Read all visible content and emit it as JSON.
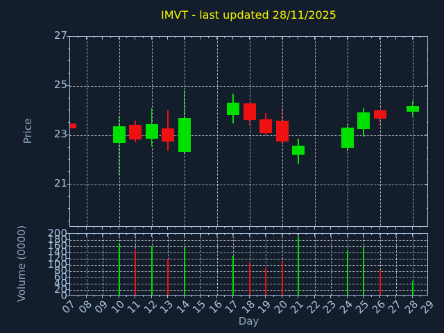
{
  "title": "IMVT - last updated 28/11/2025",
  "axes": {
    "price_label": "Price",
    "volume_label": "Volume (0000)",
    "day_label": "Day",
    "price_ticks": [
      27,
      25,
      23,
      21
    ],
    "volume_ticks": [
      200,
      180,
      160,
      140,
      120,
      100,
      80,
      60,
      40,
      20,
      0
    ],
    "day_ticks": [
      "07",
      "08",
      "09",
      "10",
      "11",
      "12",
      "13",
      "14",
      "15",
      "16",
      "17",
      "18",
      "19",
      "20",
      "21",
      "22",
      "23",
      "24",
      "25",
      "26",
      "27",
      "28",
      "29"
    ]
  },
  "colors": {
    "background": "#131d2b",
    "axis": "#a9c2de",
    "tick_label": "#a9c2de",
    "axis_title": "#8ea7c4",
    "title": "#f5f500",
    "grid": "#c9ced6",
    "up": "#00e100",
    "down": "#ee1111"
  },
  "chart_data": [
    {
      "type": "candlestick",
      "title": "IMVT - last updated 28/11/2025",
      "xlabel": "Day",
      "ylabel": "Price",
      "xlim_days": [
        7,
        29
      ],
      "ylim": [
        19.25,
        27.0
      ],
      "yticks": [
        21,
        23,
        25,
        27
      ],
      "grid": "dotted, horizontal at yticks, vertical every 2 days",
      "legend": "none",
      "series": [
        {
          "day": 7,
          "open": 23.47,
          "high": 23.49,
          "low": 23.27,
          "close": 23.29,
          "direction": "down"
        },
        {
          "day": 10,
          "open": 22.69,
          "high": 23.79,
          "low": 21.38,
          "close": 23.36,
          "direction": "up"
        },
        {
          "day": 11,
          "open": 23.41,
          "high": 23.58,
          "low": 22.72,
          "close": 22.82,
          "direction": "down"
        },
        {
          "day": 12,
          "open": 22.86,
          "high": 24.09,
          "low": 22.55,
          "close": 23.46,
          "direction": "up"
        },
        {
          "day": 13,
          "open": 23.27,
          "high": 24.0,
          "low": 22.39,
          "close": 22.74,
          "direction": "down"
        },
        {
          "day": 14,
          "open": 22.33,
          "high": 24.84,
          "low": 22.24,
          "close": 23.7,
          "direction": "up"
        },
        {
          "day": 17,
          "open": 23.81,
          "high": 24.7,
          "low": 23.47,
          "close": 24.33,
          "direction": "up"
        },
        {
          "day": 18,
          "open": 24.3,
          "high": 24.33,
          "low": 23.39,
          "close": 23.61,
          "direction": "down"
        },
        {
          "day": 19,
          "open": 23.65,
          "high": 23.91,
          "low": 22.99,
          "close": 23.08,
          "direction": "down"
        },
        {
          "day": 20,
          "open": 23.6,
          "high": 24.09,
          "low": 22.64,
          "close": 22.74,
          "direction": "down"
        },
        {
          "day": 21,
          "open": 22.22,
          "high": 22.86,
          "low": 21.85,
          "close": 22.58,
          "direction": "up"
        },
        {
          "day": 24,
          "open": 22.48,
          "high": 23.44,
          "low": 22.36,
          "close": 23.32,
          "direction": "up"
        },
        {
          "day": 25,
          "open": 23.25,
          "high": 24.11,
          "low": 22.95,
          "close": 23.94,
          "direction": "up"
        },
        {
          "day": 26,
          "open": 24.0,
          "high": 24.02,
          "low": 23.39,
          "close": 23.67,
          "direction": "down"
        },
        {
          "day": 28,
          "open": 23.96,
          "high": 24.42,
          "low": 23.74,
          "close": 24.19,
          "direction": "up"
        }
      ]
    },
    {
      "type": "bar",
      "ylabel": "Volume (0000)",
      "ylim": [
        0,
        200
      ],
      "yticks": [
        0,
        20,
        40,
        60,
        80,
        100,
        120,
        140,
        160,
        180,
        200
      ],
      "grid": "dotted, horizontal every 20, vertical every day",
      "categories": [
        10,
        11,
        12,
        13,
        14,
        17,
        18,
        19,
        20,
        21,
        24,
        25,
        26,
        28
      ],
      "values": [
        172,
        150,
        161,
        119,
        158,
        130,
        108,
        91,
        112,
        190,
        146,
        158,
        85,
        50
      ],
      "bar_color_rule": "green if close>=open else red"
    }
  ]
}
